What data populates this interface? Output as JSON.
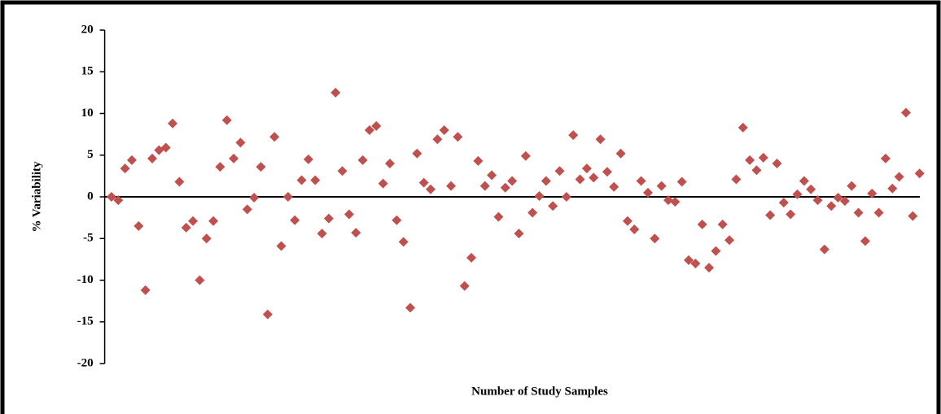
{
  "chart_data": {
    "type": "scatter",
    "xlabel": "Number of Study Samples",
    "ylabel": "% Variability",
    "color": "#c0504d",
    "x": [
      1,
      2,
      3,
      4,
      5,
      6,
      7,
      8,
      9,
      10,
      11,
      12,
      13,
      14,
      15,
      16,
      17,
      18,
      19,
      20,
      21,
      22,
      23,
      24,
      25,
      26,
      27,
      28,
      29,
      30,
      31,
      32,
      33,
      34,
      35,
      36,
      37,
      38,
      39,
      40,
      41,
      42,
      43,
      44,
      45,
      46,
      47,
      48,
      49,
      50,
      51,
      52,
      53,
      54,
      55,
      56,
      57,
      58,
      59,
      60,
      61,
      62,
      63,
      64,
      65,
      66,
      67,
      68,
      69,
      70,
      71,
      72,
      73,
      74,
      75,
      76,
      77,
      78,
      79,
      80,
      81,
      82,
      83,
      84,
      85,
      86,
      87,
      88,
      89,
      90,
      91,
      92,
      93,
      94,
      95,
      96,
      97,
      98,
      99,
      100,
      101,
      102,
      103,
      104,
      105,
      106,
      107,
      108,
      109,
      110,
      111,
      112,
      113,
      114,
      115,
      116,
      117,
      118,
      119,
      120
    ],
    "values": [
      0,
      -0.4,
      3.4,
      4.4,
      -3.5,
      -11.2,
      4.6,
      5.6,
      5.9,
      8.8,
      1.8,
      -3.7,
      -2.9,
      -10,
      -5,
      -2.9,
      3.6,
      9.2,
      4.6,
      6.5,
      -1.5,
      -0.1,
      3.6,
      -14.1,
      7.2,
      -5.9,
      0,
      -2.8,
      2,
      4.5,
      2,
      -4.4,
      -2.6,
      12.5,
      3.1,
      -2.1,
      -4.3,
      4.4,
      8,
      8.5,
      1.6,
      4,
      -2.8,
      -5.4,
      -13.3,
      5.2,
      1.7,
      0.9,
      6.9,
      8,
      1.3,
      7.2,
      -10.7,
      -7.3,
      4.3,
      1.3,
      2.6,
      -2.4,
      1.1,
      1.9,
      -4.4,
      4.9,
      -1.9,
      0.1,
      1.9,
      -1.1,
      3.1,
      0,
      7.4,
      2.1,
      3.4,
      2.3,
      6.9,
      3,
      1.2,
      5.2,
      -2.9,
      -3.9,
      1.9,
      0.5,
      -5,
      1.3,
      -0.4,
      -0.6,
      1.8,
      -7.6,
      -8,
      -3.3,
      -8.5,
      -6.5,
      -3.3,
      -5.2,
      2.1,
      8.3,
      4.4,
      3.2,
      4.7,
      -2.2,
      4,
      -0.7,
      -2.1,
      0.3,
      1.9,
      0.9,
      -0.4,
      -6.3,
      -1.1,
      -0.1,
      -0.5,
      1.3,
      -1.9,
      -5.3,
      0.4,
      -1.9,
      4.6,
      1,
      2.4,
      10.1,
      -2.3,
      2.8
    ],
    "xlim": [
      0,
      121
    ],
    "ylim": [
      -20,
      20
    ],
    "yticks": [
      -20,
      -15,
      -10,
      -5,
      0,
      5,
      10,
      15,
      20
    ]
  }
}
